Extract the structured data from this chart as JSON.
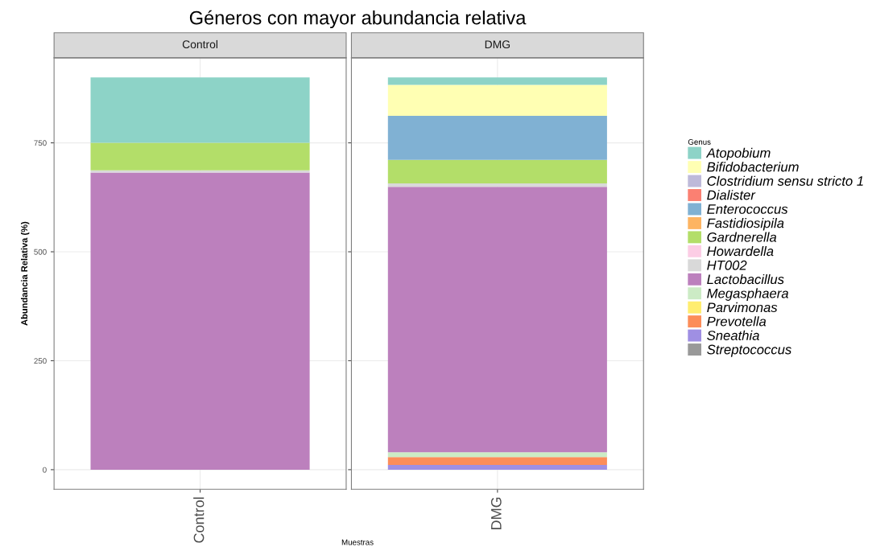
{
  "chart_data": [
    {
      "type": "bar",
      "stacked": true,
      "title": "Géneros con mayor abundancia relativa",
      "subtitle": "Control",
      "ylabel": "Abundancia Relativa (%)",
      "categories": [
        "Control"
      ],
      "ylim": [
        -45,
        945
      ],
      "yticks": [
        0,
        250,
        500,
        750
      ],
      "grid": true,
      "series": [
        {
          "color": "#999999",
          "values": [
            0
          ]
        },
        {
          "color": "#9f8fe3",
          "values": [
            0
          ]
        },
        {
          "color": "#fc8d59",
          "values": [
            0
          ]
        },
        {
          "color": "#ffed6f",
          "values": [
            0
          ]
        },
        {
          "color": "#ccebc5",
          "values": [
            0
          ]
        },
        {
          "color": "#bc80bd",
          "values": [
            682
          ]
        },
        {
          "color": "#d9d9d9",
          "values": [
            5
          ]
        },
        {
          "color": "#fccde5",
          "values": [
            0
          ]
        },
        {
          "color": "#b3de69",
          "values": [
            63
          ]
        },
        {
          "color": "#fdb462",
          "values": [
            0
          ]
        },
        {
          "color": "#80b1d3",
          "values": [
            0
          ]
        },
        {
          "color": "#fb8072",
          "values": [
            0
          ]
        },
        {
          "color": "#bebada",
          "values": [
            0
          ]
        },
        {
          "color": "#ffffb3",
          "values": [
            0
          ]
        },
        {
          "color": "#8dd3c7",
          "values": [
            150
          ]
        }
      ]
    },
    {
      "type": "bar",
      "stacked": true,
      "subtitle": "DMG",
      "xlabel": "Muestras",
      "legend_title": "Genus",
      "legend": "right",
      "categories": [
        "DMG"
      ],
      "ylim": [
        -45,
        945
      ],
      "yticks": [
        0,
        250,
        500,
        750
      ],
      "grid": true,
      "tick_labels": "x",
      "series": [
        {
          "name": "Streptococcus",
          "color": "#999999",
          "values": [
            0
          ]
        },
        {
          "name": "Sneathia",
          "color": "#9f8fe3",
          "values": [
            11
          ]
        },
        {
          "name": "Prevotella",
          "color": "#fc8d59",
          "values": [
            18
          ]
        },
        {
          "name": "Parvimonas",
          "color": "#ffed6f",
          "values": [
            0
          ]
        },
        {
          "name": "Megasphaera",
          "color": "#ccebc5",
          "values": [
            11
          ]
        },
        {
          "name": "Lactobacillus",
          "color": "#bc80bd",
          "values": [
            609
          ]
        },
        {
          "name": "HT002",
          "color": "#d9d9d9",
          "values": [
            8
          ]
        },
        {
          "name": "Howardella",
          "color": "#fccde5",
          "values": [
            0
          ]
        },
        {
          "name": "Gardnerella",
          "color": "#b3de69",
          "values": [
            54
          ]
        },
        {
          "name": "Fastidiosipila",
          "color": "#fdb462",
          "values": [
            0
          ]
        },
        {
          "name": "Enterococcus",
          "color": "#80b1d3",
          "values": [
            101
          ]
        },
        {
          "name": "Dialister",
          "color": "#fb8072",
          "values": [
            0
          ]
        },
        {
          "name": "Clostridium sensu stricto 1",
          "color": "#bebada",
          "values": [
            0
          ]
        },
        {
          "name": "Bifidobacterium",
          "color": "#ffffb3",
          "values": [
            71
          ]
        },
        {
          "name": "Atopobium",
          "color": "#8dd3c7",
          "values": [
            17
          ]
        }
      ]
    }
  ]
}
